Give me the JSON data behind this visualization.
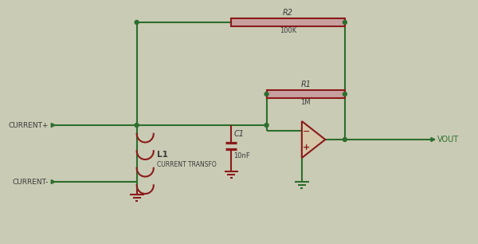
{
  "bg_color": "#c9cbb4",
  "wire_color": "#2d6e2d",
  "component_color": "#8b1a1a",
  "facecolor_resistor": "#c8a0a0",
  "facecolor_opamp": "#d4c8a8",
  "line_width": 1.5,
  "component_lw": 1.5,
  "figsize": [
    6.0,
    3.06
  ],
  "dpi": 100,
  "labels": {
    "R2": "R2",
    "R2_val": "100K",
    "R1": "R1",
    "R1_val": "1M",
    "C1": "C1",
    "C1_val": "10nF",
    "L1": "L1",
    "L1_label": "CURRENT TRANSFO",
    "CURRENT_PLUS": "CURRENT+",
    "CURRENT_MINUS": "CURRENT-",
    "VOUT": "VOUT"
  },
  "label_color": "#3a3a3a",
  "label_color2": "#2d6e2d"
}
